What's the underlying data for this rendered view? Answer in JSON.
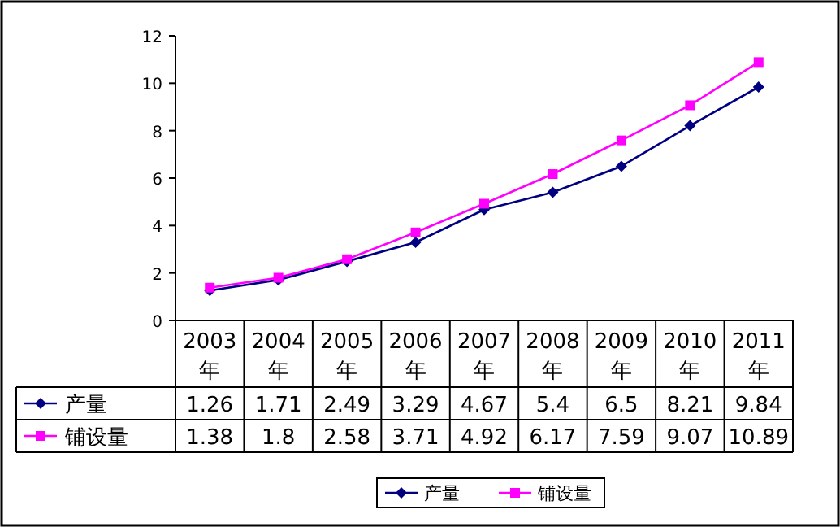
{
  "chart_data": {
    "type": "line",
    "categories": [
      "2003年",
      "2004年",
      "2005年",
      "2006年",
      "2007年",
      "2008年",
      "2009年",
      "2010年",
      "2011年"
    ],
    "series": [
      {
        "name": "产量",
        "color": "#000080",
        "marker": "diamond",
        "values": [
          1.26,
          1.71,
          2.49,
          3.29,
          4.67,
          5.4,
          6.5,
          8.21,
          9.84
        ]
      },
      {
        "name": "铺设量",
        "color": "#ff00ff",
        "marker": "square",
        "values": [
          1.38,
          1.8,
          2.58,
          3.71,
          4.92,
          6.17,
          7.59,
          9.07,
          10.89
        ]
      }
    ],
    "ylim": [
      0,
      12
    ],
    "yticks": [
      0,
      2,
      4,
      6,
      8,
      10,
      12
    ],
    "data_labels": true,
    "grid": false,
    "legend": "bottom",
    "line_style": "solid"
  }
}
